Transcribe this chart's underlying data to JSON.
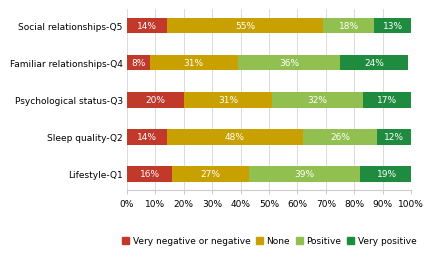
{
  "categories": [
    "Lifestyle-Q1",
    "Sleep quality-Q2",
    "Psychological status-Q3",
    "Familiar relationships-Q4",
    "Social relationships-Q5"
  ],
  "segments": {
    "Very negative or negative": [
      16,
      14,
      20,
      8,
      14
    ],
    "None": [
      27,
      48,
      31,
      31,
      55
    ],
    "Positive": [
      39,
      26,
      32,
      36,
      18
    ],
    "Very positive": [
      19,
      12,
      17,
      24,
      13
    ]
  },
  "colors": {
    "Very negative or negative": "#c0392b",
    "None": "#c8a000",
    "Positive": "#92c050",
    "Very positive": "#1e8b3e"
  },
  "text_color": "#ffffff",
  "background_color": "#ffffff",
  "xlim": [
    0,
    100
  ],
  "xtick_vals": [
    0,
    10,
    20,
    30,
    40,
    50,
    60,
    70,
    80,
    90,
    100
  ],
  "xtick_labels": [
    "0%",
    "10%",
    "20%",
    "30%",
    "40%",
    "50%",
    "60%",
    "70%",
    "80%",
    "90%",
    "100%"
  ],
  "bar_height": 0.42,
  "fontsize_labels": 6.5,
  "fontsize_ticks": 6.5,
  "fontsize_legend": 6.5,
  "legend_order": [
    "Very negative or negative",
    "None",
    "Positive",
    "Very positive"
  ]
}
